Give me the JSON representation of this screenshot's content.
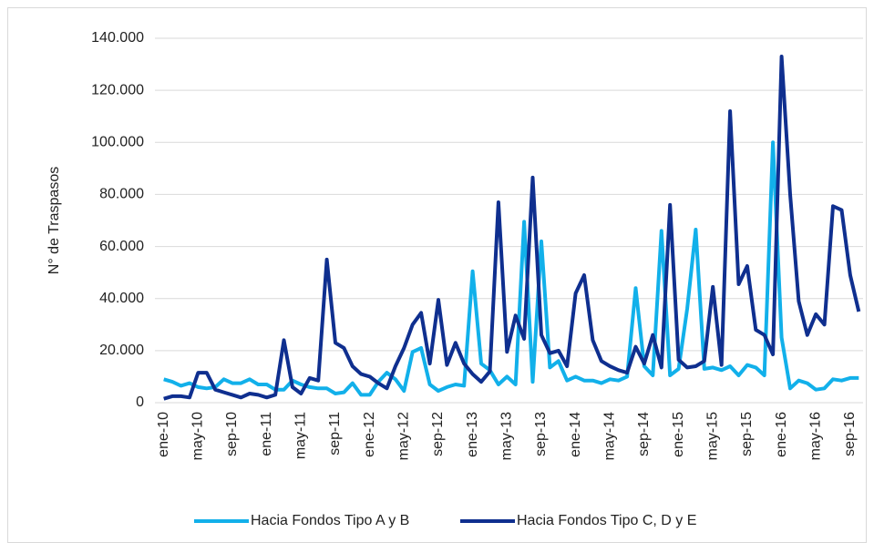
{
  "chart_data": {
    "type": "line",
    "y_label": "N° de Traspasos",
    "categories": [
      "ene-10",
      null,
      null,
      null,
      "may-10",
      null,
      null,
      null,
      "sep-10",
      null,
      null,
      null,
      "ene-11",
      null,
      null,
      null,
      "may-11",
      null,
      null,
      null,
      "sep-11",
      null,
      null,
      null,
      "ene-12",
      null,
      null,
      null,
      "may-12",
      null,
      null,
      null,
      "sep-12",
      null,
      null,
      null,
      "ene-13",
      null,
      null,
      null,
      "may-13",
      null,
      null,
      null,
      "sep-13",
      null,
      null,
      null,
      "ene-14",
      null,
      null,
      null,
      "may-14",
      null,
      null,
      null,
      "sep-14",
      null,
      null,
      null,
      "ene-15",
      null,
      null,
      null,
      "may-15",
      null,
      null,
      null,
      "sep-15",
      null,
      null,
      null,
      "ene-16",
      null,
      null,
      null,
      "may-16",
      null,
      null,
      null,
      "sep-16",
      null
    ],
    "series": [
      {
        "name": "Hacia Fondos Tipo A y B",
        "color": "#12b0ea",
        "values": [
          9000,
          8000,
          6500,
          7500,
          6000,
          5500,
          6000,
          9000,
          7500,
          7500,
          9000,
          7000,
          7000,
          5000,
          5000,
          8500,
          7000,
          6000,
          5500,
          5500,
          3500,
          4000,
          7500,
          3000,
          3000,
          8000,
          11500,
          9000,
          4500,
          19500,
          21000,
          7000,
          4500,
          6000,
          7000,
          6500,
          50500,
          15000,
          12500,
          7000,
          10000,
          7000,
          69500,
          8000,
          62000,
          13500,
          16000,
          8500,
          10000,
          8500,
          8500,
          7500,
          9000,
          8500,
          10000,
          44000,
          14000,
          10500,
          66000,
          10500,
          13000,
          36000,
          66500,
          13000,
          13500,
          12500,
          14000,
          10500,
          14500,
          13500,
          10500,
          100000,
          25000,
          5500,
          8500,
          7500,
          5000,
          5500,
          9000,
          8500,
          9500,
          9500
        ]
      },
      {
        "name": "Hacia Fondos Tipo C, D y E",
        "color": "#0f2f8f",
        "values": [
          1500,
          2500,
          2500,
          2000,
          11500,
          11500,
          5000,
          4000,
          3000,
          2000,
          3500,
          3000,
          2000,
          3000,
          24000,
          6000,
          3500,
          9500,
          8500,
          55000,
          23000,
          21000,
          14000,
          11000,
          10000,
          7500,
          5500,
          14000,
          21000,
          30000,
          34500,
          15000,
          39500,
          14500,
          23000,
          15000,
          11000,
          8000,
          12000,
          77000,
          19500,
          33500,
          24500,
          86500,
          26000,
          19000,
          20000,
          14000,
          42000,
          49000,
          24000,
          16000,
          14000,
          12500,
          11500,
          21500,
          15000,
          26000,
          13500,
          76000,
          16500,
          13500,
          14000,
          16000,
          44500,
          14500,
          112000,
          45500,
          52500,
          28000,
          26000,
          18500,
          133000,
          80000,
          39000,
          26000,
          34000,
          30000,
          75500,
          74000,
          49000,
          35000
        ]
      }
    ],
    "ylim": [
      0,
      140000
    ],
    "yticks": [
      0,
      {
        "value": 20000,
        "label": "20.000"
      },
      {
        "value": 40000,
        "label": "40.000"
      },
      {
        "value": 60000,
        "label": "60.000"
      },
      {
        "value": 80000,
        "label": "80.000"
      },
      {
        "value": 100000,
        "label": "100.000"
      },
      {
        "value": 120000,
        "label": "120.000"
      },
      {
        "value": 140000,
        "label": "140.000"
      }
    ],
    "grid": true,
    "legend": "bottom"
  }
}
